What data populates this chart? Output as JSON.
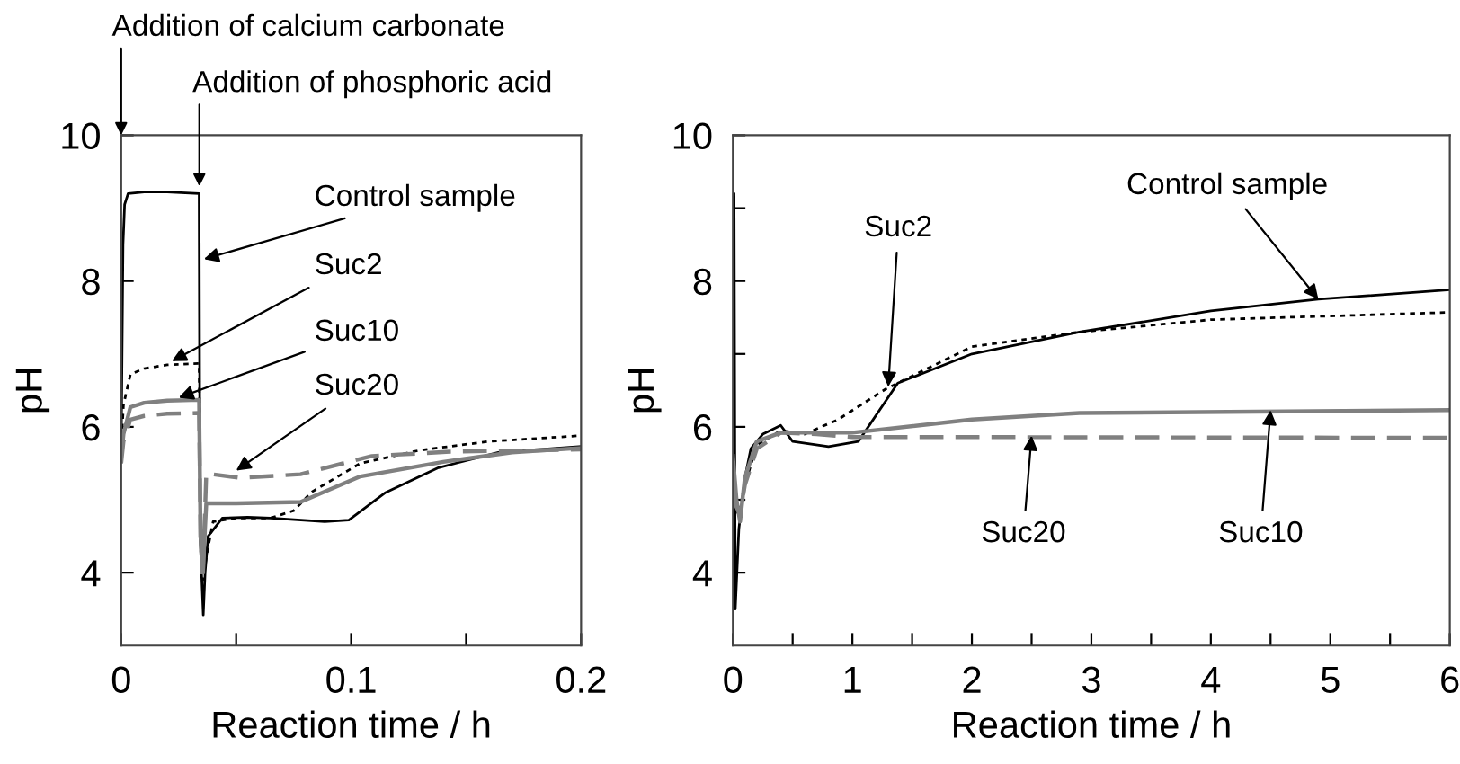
{
  "chart_data": [
    {
      "type": "line",
      "xlabel": "Reaction time / h",
      "ylabel": "pH",
      "xlim": [
        0,
        0.2
      ],
      "ylim": [
        3,
        10
      ],
      "xticks": [
        0,
        {
          "value": 0.05,
          "label": null
        },
        0.1,
        {
          "value": 0.15,
          "label": null
        },
        0.2
      ],
      "yticks": [
        4,
        6,
        8,
        10
      ],
      "grid": false,
      "legend": false,
      "series": [
        {
          "color": "#000000",
          "line_style": "solid",
          "x": [
            0,
            0.0008,
            0.0015,
            0.003,
            0.01,
            0.02,
            0.0339,
            0.0343,
            0.0357,
            0.0365,
            0.0378,
            0.044,
            0.055,
            0.065,
            0.0885,
            0.099,
            0.115,
            0.138,
            0.164,
            0.2
          ],
          "values": [
            5.6,
            8.5,
            9.05,
            9.2,
            9.22,
            9.22,
            9.2,
            4.5,
            3.42,
            4.0,
            4.5,
            4.75,
            4.76,
            4.75,
            4.7,
            4.72,
            5.1,
            5.44,
            5.65,
            5.73
          ]
        },
        {
          "color": "#000000",
          "line_style": "dotted",
          "x": [
            0,
            0.001,
            0.004,
            0.01,
            0.02,
            0.0339,
            0.0345,
            0.0355,
            0.0375,
            0.04,
            0.05,
            0.065,
            0.075,
            0.083,
            0.104,
            0.13,
            0.16,
            0.2
          ],
          "values": [
            5.7,
            6.3,
            6.72,
            6.8,
            6.85,
            6.87,
            4.5,
            3.9,
            4.3,
            4.7,
            4.75,
            4.75,
            4.85,
            5.11,
            5.5,
            5.68,
            5.8,
            5.88
          ]
        },
        {
          "color": "#808080",
          "line_style": "solid",
          "x": [
            0,
            0.001,
            0.004,
            0.01,
            0.02,
            0.0339,
            0.0345,
            0.0355,
            0.037,
            0.05,
            0.078,
            0.104,
            0.14,
            0.17,
            0.2
          ],
          "values": [
            5.6,
            5.9,
            6.27,
            6.33,
            6.36,
            6.37,
            4.5,
            4.0,
            4.95,
            4.95,
            4.97,
            5.32,
            5.52,
            5.65,
            5.71
          ]
        },
        {
          "color": "#808080",
          "line_style": "dashed",
          "x": [
            0,
            0.001,
            0.004,
            0.01,
            0.02,
            0.0339,
            0.0345,
            0.0355,
            0.037,
            0.052,
            0.078,
            0.109,
            0.143,
            0.2
          ],
          "values": [
            5.5,
            5.8,
            6.1,
            6.15,
            6.18,
            6.19,
            4.5,
            3.9,
            5.36,
            5.3,
            5.35,
            5.6,
            5.66,
            5.69
          ]
        }
      ],
      "annotations": [
        "Addition of calcium carbonate",
        {
          "text": "Addition of phosphoric acid",
          "x": 0.034,
          "y": 9.3
        },
        {
          "text": "Control sample",
          "x": 0.036,
          "y": 8.3
        },
        {
          "text": "Suc2",
          "x": 0.022,
          "y": 6.9
        },
        {
          "text": "Suc10",
          "x": 0.025,
          "y": 6.4
        },
        {
          "text": "Suc20",
          "x": 0.05,
          "y": 5.4
        }
      ]
    },
    {
      "type": "line",
      "xlabel": "Reaction time / h",
      "ylabel": "pH",
      "xlim": [
        0,
        6
      ],
      "ylim": [
        3,
        10
      ],
      "xticks": [
        0,
        {
          "value": 0.5,
          "label": null
        },
        1,
        {
          "value": 1.5,
          "label": null
        },
        2,
        {
          "value": 2.5,
          "label": null
        },
        3,
        {
          "value": 3.5,
          "label": null
        },
        4,
        {
          "value": 4.5,
          "label": null
        },
        5,
        {
          "value": 5.5,
          "label": null
        },
        6
      ],
      "yticks": [
        4,
        {
          "value": 5,
          "label": null
        },
        6,
        {
          "value": 7,
          "label": null
        },
        8,
        {
          "value": 9,
          "label": null
        },
        10
      ],
      "grid": false,
      "legend": false,
      "series": [
        {
          "color": "#000000",
          "line_style": "solid",
          "x": [
            0,
            0.01,
            0.02,
            0.05,
            0.1,
            0.15,
            0.25,
            0.4,
            0.5,
            0.8,
            1.05,
            1.38,
            2.0,
            2.9,
            4.0,
            4.9,
            6.0
          ],
          "values": [
            5.6,
            9.2,
            3.5,
            4.6,
            5.3,
            5.7,
            5.9,
            6.02,
            5.8,
            5.73,
            5.8,
            6.6,
            7.0,
            7.3,
            7.59,
            7.75,
            7.88
          ]
        },
        {
          "color": "#000000",
          "line_style": "dotted",
          "x": [
            0,
            0.03,
            0.06,
            0.1,
            0.2,
            0.4,
            0.6,
            0.88,
            1.28,
            2.0,
            2.9,
            4.0,
            6.0
          ],
          "values": [
            5.7,
            4.8,
            4.9,
            5.2,
            5.75,
            5.95,
            5.9,
            6.1,
            6.52,
            7.1,
            7.3,
            7.47,
            7.57
          ]
        },
        {
          "color": "#808080",
          "line_style": "solid",
          "x": [
            0,
            0.03,
            0.06,
            0.1,
            0.2,
            0.4,
            0.7,
            1.0,
            2.0,
            2.9,
            6.0
          ],
          "values": [
            5.6,
            5.0,
            4.7,
            5.3,
            5.8,
            5.92,
            5.92,
            5.92,
            6.1,
            6.19,
            6.23
          ]
        },
        {
          "color": "#808080",
          "line_style": "dashed",
          "x": [
            0,
            0.03,
            0.06,
            0.1,
            0.2,
            0.4,
            0.7,
            1.0,
            2.0,
            6.0
          ],
          "values": [
            5.5,
            4.9,
            4.8,
            5.2,
            5.7,
            5.92,
            5.9,
            5.86,
            5.86,
            5.85
          ]
        }
      ],
      "annotations": [
        {
          "text": "Control sample",
          "x": 4.9,
          "y": 7.75
        },
        {
          "text": "Suc2",
          "x": 1.3,
          "y": 6.55
        },
        {
          "text": "Suc20",
          "x": 2.5,
          "y": 5.88
        },
        {
          "text": "Suc10",
          "x": 4.5,
          "y": 6.23
        }
      ]
    }
  ]
}
